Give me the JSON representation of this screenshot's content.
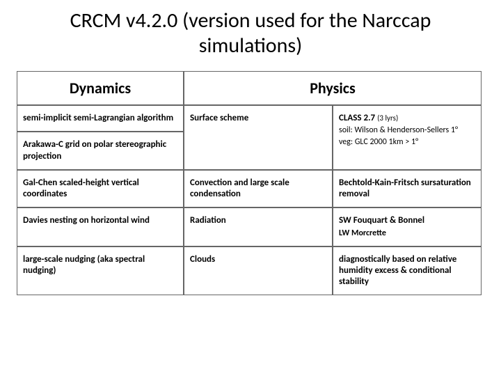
{
  "title": "CRCM v4.2.0 (version used for the Narccap simulations)",
  "headers": {
    "dynamics": "Dynamics",
    "physics": "Physics"
  },
  "dynamics": [
    "semi-implicit semi-Lagrangian algorithm",
    "Arakawa-C grid on polar stereographic projection",
    "Gal-Chen scaled-height vertical coordinates",
    "Davies nesting on horizontal wind",
    "large-scale nudging (aka spectral nudging)"
  ],
  "physics": [
    {
      "name": "Surface scheme",
      "value_main": "CLASS 2.7",
      "value_note": "(3 lyrs)",
      "value_sub1": "soil: Wilson & Henderson-Sellers 1°",
      "value_sub2": "veg: GLC 2000  1km > 1°"
    },
    {
      "name": "Convection and large scale condensation",
      "value_main": "Bechtold-Kain-Fritsch sursaturation removal"
    },
    {
      "name": "Radiation",
      "value_main": "SW Fouquart & Bonnel",
      "value_sub1": "LW Morcrette"
    },
    {
      "name": "Clouds",
      "value_main": "diagnostically based on relative humidity excess & conditional stability"
    }
  ],
  "colors": {
    "bg": "#ffffff",
    "text": "#000000",
    "border": "#666666"
  }
}
